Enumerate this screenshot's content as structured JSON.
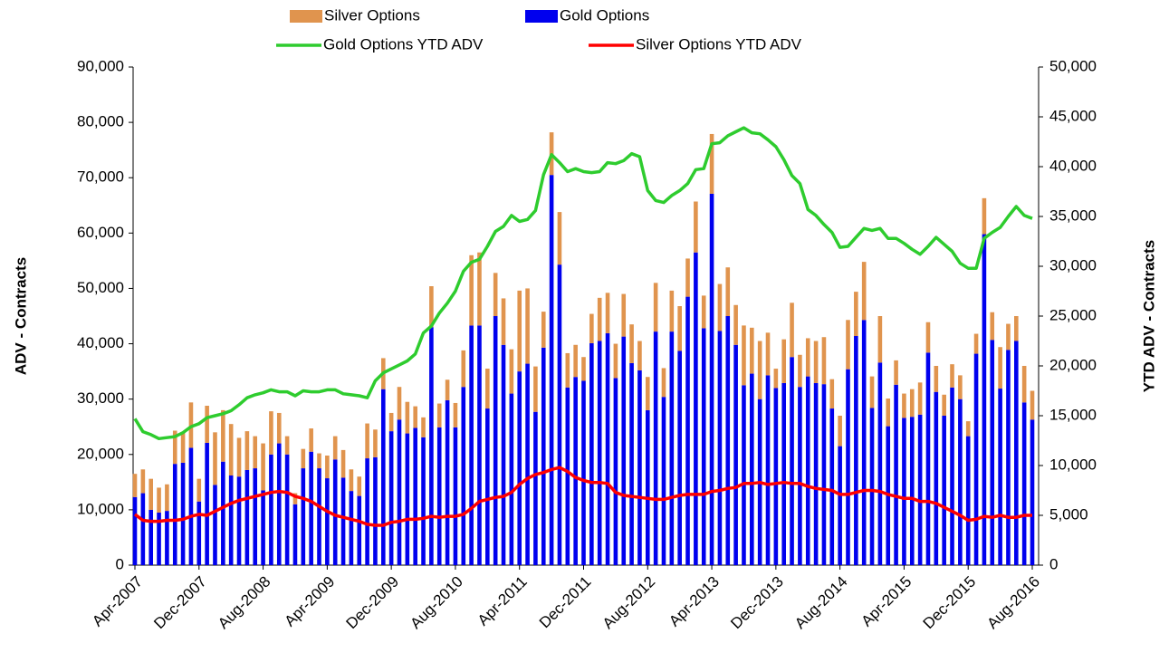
{
  "chart_data": {
    "type": "bar",
    "stacked": true,
    "y_label": "ADV - Contracts",
    "y2_label": "YTD ADV - Contracts",
    "categories": [
      "Apr-2007",
      null,
      null,
      null,
      null,
      null,
      null,
      null,
      "Dec-2007",
      null,
      null,
      null,
      null,
      null,
      null,
      null,
      "Aug-2008",
      null,
      null,
      null,
      null,
      null,
      null,
      null,
      "Apr-2009",
      null,
      null,
      null,
      null,
      null,
      null,
      null,
      "Dec-2009",
      null,
      null,
      null,
      null,
      null,
      null,
      null,
      "Aug-2010",
      null,
      null,
      null,
      null,
      null,
      null,
      null,
      "Apr-2011",
      null,
      null,
      null,
      null,
      null,
      null,
      null,
      "Dec-2011",
      null,
      null,
      null,
      null,
      null,
      null,
      null,
      "Aug-2012",
      null,
      null,
      null,
      null,
      null,
      null,
      null,
      "Apr-2013",
      null,
      null,
      null,
      null,
      null,
      null,
      null,
      "Dec-2013",
      null,
      null,
      null,
      null,
      null,
      null,
      null,
      "Aug-2014",
      null,
      null,
      null,
      null,
      null,
      null,
      null,
      "Apr-2015",
      null,
      null,
      null,
      null,
      null,
      null,
      null,
      "Dec-2015",
      null,
      null,
      null,
      null,
      null,
      null,
      null,
      "Aug-2016"
    ],
    "ylim": [
      0,
      90000
    ],
    "yticks": [
      0,
      {
        "value": 10000,
        "label": "10,000"
      },
      {
        "value": 20000,
        "label": "20,000"
      },
      {
        "value": 30000,
        "label": "30,000"
      },
      {
        "value": 40000,
        "label": "40,000"
      },
      {
        "value": 50000,
        "label": "50,000"
      },
      {
        "value": 60000,
        "label": "60,000"
      },
      {
        "value": 70000,
        "label": "70,000"
      },
      {
        "value": 80000,
        "label": "80,000"
      },
      {
        "value": 90000,
        "label": "90,000"
      }
    ],
    "y2lim": [
      0,
      50000
    ],
    "y2ticks": [
      0,
      {
        "value": 5000,
        "label": "5,000"
      },
      {
        "value": 10000,
        "label": "10,000"
      },
      {
        "value": 15000,
        "label": "15,000"
      },
      {
        "value": 20000,
        "label": "20,000"
      },
      {
        "value": 25000,
        "label": "25,000"
      },
      {
        "value": 30000,
        "label": "30,000"
      },
      {
        "value": 35000,
        "label": "35,000"
      },
      {
        "value": 40000,
        "label": "40,000"
      },
      {
        "value": 45000,
        "label": "45,000"
      },
      {
        "value": 50000,
        "label": "50,000"
      }
    ],
    "series": [
      {
        "name": "Silver Options",
        "type": "bar",
        "color": "#e0944e",
        "values": [
          4200,
          4300,
          5600,
          4500,
          4800,
          6000,
          5500,
          8200,
          4100,
          6700,
          9500,
          9300,
          9300,
          7000,
          7000,
          5800,
          8500,
          7800,
          5500,
          3300,
          2000,
          3500,
          4200,
          2700,
          4100,
          4200,
          5000,
          3900,
          3500,
          6300,
          5000,
          5600,
          3300,
          5900,
          5700,
          3900,
          3600,
          7400,
          4300,
          3700,
          4400,
          6600,
          12700,
          13200,
          7200,
          7800,
          8400,
          8000,
          14600,
          13600,
          8200,
          6500,
          7700,
          9500,
          6200,
          5800,
          4300,
          5300,
          7800,
          7300,
          6200,
          7700,
          7000,
          5300,
          6000,
          8800,
          5200,
          7400,
          8100,
          6900,
          9200,
          5900,
          10800,
          8500,
          8800,
          7200,
          10800,
          8300,
          10500,
          7700,
          3500,
          7900,
          9800,
          5800,
          6900,
          7600,
          8500,
          5300,
          5500,
          8900,
          8000,
          10500,
          5700,
          8400,
          5000,
          4400,
          4400,
          5000,
          5800,
          5500,
          4700,
          3800,
          4200,
          4300,
          2700,
          3600,
          6500,
          5000,
          7500,
          4700,
          4500,
          6600,
          5200
        ]
      },
      {
        "name": "Gold Options",
        "type": "bar",
        "color": "#0000ee",
        "values": [
          12300,
          13000,
          10000,
          9500,
          9800,
          18300,
          18500,
          21200,
          11500,
          22100,
          14500,
          18700,
          16200,
          16000,
          17200,
          17500,
          13500,
          20000,
          22000,
          20000,
          11000,
          17500,
          20500,
          17500,
          15700,
          19100,
          15800,
          13400,
          12500,
          19300,
          19500,
          31800,
          24200,
          26300,
          23800,
          24800,
          23100,
          43000,
          24900,
          29800,
          24900,
          32200,
          43300,
          43300,
          28300,
          45000,
          39800,
          31000,
          35000,
          36400,
          27700,
          39300,
          70500,
          54300,
          32100,
          34000,
          33300,
          40100,
          40500,
          41900,
          33800,
          41300,
          36500,
          35200,
          28000,
          42200,
          30400,
          42200,
          38700,
          48500,
          56500,
          42800,
          67100,
          42300,
          45000,
          39800,
          32500,
          34600,
          30000,
          34300,
          32000,
          32900,
          37600,
          32200,
          34100,
          32900,
          32700,
          28300,
          21500,
          35400,
          41400,
          44300,
          28400,
          36600,
          25100,
          32600,
          26600,
          26800,
          27200,
          38400,
          31300,
          27000,
          32100,
          30000,
          23300,
          38200,
          59800,
          40700,
          31900,
          38900,
          40500,
          29400,
          26300
        ]
      },
      {
        "name": "Gold Options YTD ADV",
        "type": "line",
        "axis": "y2",
        "color": "#2ecc2e",
        "values": [
          14700,
          13400,
          13100,
          12700,
          12800,
          12900,
          13300,
          13900,
          14200,
          14800,
          15000,
          15200,
          15500,
          16100,
          16800,
          17100,
          17300,
          17600,
          17400,
          17400,
          17000,
          17500,
          17400,
          17400,
          17600,
          17600,
          17200,
          17100,
          17000,
          16800,
          18500,
          19300,
          19700,
          20100,
          20500,
          21200,
          23300,
          24000,
          25300,
          26300,
          27500,
          29500,
          30400,
          30700,
          32000,
          33500,
          34000,
          35100,
          34500,
          34700,
          35600,
          39200,
          41200,
          40400,
          39500,
          39800,
          39500,
          39400,
          39500,
          40400,
          40300,
          40600,
          41300,
          41000,
          37600,
          36600,
          36400,
          37100,
          37600,
          38300,
          39700,
          39800,
          42300,
          42400,
          43100,
          43500,
          43900,
          43400,
          43300,
          42700,
          42000,
          40700,
          39100,
          38300,
          35700,
          35100,
          34200,
          33400,
          31900,
          32000,
          32900,
          33800,
          33600,
          33800,
          32800,
          32800,
          32300,
          31700,
          31200,
          32000,
          32900,
          32200,
          31500,
          30300,
          29800,
          29800,
          32800,
          33400,
          33900,
          35000,
          36000,
          35100,
          34800
        ]
      },
      {
        "name": "Silver Options YTD ADV",
        "type": "line",
        "axis": "y2",
        "color": "#ff0000",
        "values": [
          5100,
          4500,
          4400,
          4400,
          4500,
          4500,
          4600,
          4900,
          5100,
          5000,
          5400,
          5800,
          6200,
          6500,
          6700,
          6900,
          7100,
          7300,
          7400,
          7300,
          6900,
          6700,
          6400,
          5900,
          5400,
          5000,
          4800,
          4600,
          4400,
          4100,
          4000,
          4000,
          4300,
          4400,
          4600,
          4600,
          4700,
          4900,
          4800,
          4900,
          4900,
          5100,
          5700,
          6400,
          6600,
          6800,
          6900,
          7300,
          8100,
          8700,
          9100,
          9300,
          9600,
          9800,
          9400,
          8800,
          8500,
          8300,
          8300,
          8200,
          7300,
          7000,
          6900,
          6800,
          6700,
          6600,
          6600,
          6800,
          7000,
          7100,
          7100,
          7100,
          7400,
          7500,
          7700,
          7800,
          8200,
          8200,
          8300,
          8100,
          8200,
          8300,
          8200,
          8200,
          7900,
          7700,
          7600,
          7500,
          7100,
          7100,
          7300,
          7500,
          7500,
          7400,
          7100,
          6900,
          6700,
          6700,
          6400,
          6400,
          6200,
          5800,
          5400,
          5000,
          4500,
          4600,
          4900,
          4800,
          5000,
          4800,
          4800,
          5000,
          5000
        ]
      }
    ]
  }
}
